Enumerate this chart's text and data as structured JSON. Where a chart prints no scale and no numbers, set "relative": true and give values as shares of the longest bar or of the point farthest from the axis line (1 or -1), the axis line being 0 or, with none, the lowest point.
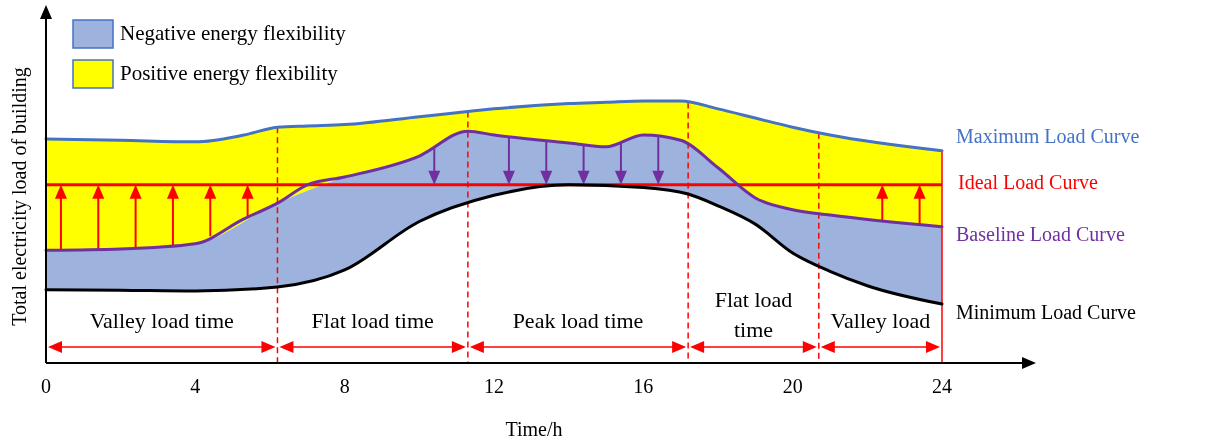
{
  "chart_data": {
    "type": "line",
    "relative": true,
    "xlabel": "Time/h",
    "ylabel": "Total electricity load of building",
    "xlim": [
      0,
      24
    ],
    "xticks": [
      0,
      4,
      8,
      12,
      16,
      20,
      24
    ],
    "legend": "top left",
    "grid": false,
    "series": [
      {
        "name": "Maximum Load Curve",
        "color": "#4472c4",
        "x": [
          0,
          2,
          4,
          5.3,
          6.2,
          7,
          8,
          10,
          11.3,
          12,
          14,
          15,
          16,
          17,
          18,
          19,
          20,
          21,
          24
        ],
        "values": [
          0.855,
          0.85,
          0.844,
          0.87,
          0.9,
          0.905,
          0.91,
          0.94,
          0.96,
          0.97,
          0.99,
          0.995,
          1.0,
          1.0,
          0.97,
          0.935,
          0.9,
          0.87,
          0.81
        ]
      },
      {
        "name": "Baseline Load Curve",
        "color": "#7030a0",
        "x": [
          0,
          2,
          4,
          5.3,
          6.2,
          7,
          8,
          10,
          11.3,
          12,
          14,
          15,
          16,
          17,
          18,
          19,
          20,
          21,
          24
        ],
        "values": [
          0.43,
          0.435,
          0.455,
          0.55,
          0.61,
          0.68,
          0.71,
          0.79,
          0.885,
          0.87,
          0.84,
          0.825,
          0.87,
          0.85,
          0.745,
          0.63,
          0.585,
          0.565,
          0.52
        ]
      },
      {
        "name": "Minimum Load Curve",
        "color": "#000000",
        "x": [
          0,
          2,
          4,
          6.2,
          8,
          10,
          12,
          14,
          16,
          17.2,
          18,
          19,
          20,
          21,
          22,
          24
        ],
        "values": [
          0.28,
          0.278,
          0.275,
          0.29,
          0.355,
          0.54,
          0.64,
          0.68,
          0.67,
          0.645,
          0.6,
          0.53,
          0.42,
          0.35,
          0.295,
          0.225
        ]
      },
      {
        "name": "Positive energy flexibility",
        "type": "area",
        "color": "#ffff00",
        "x": [
          0,
          2,
          4,
          5.3,
          6.2,
          7,
          8,
          10,
          11.3,
          12,
          14,
          15,
          16,
          17,
          18,
          19,
          20,
          21,
          24
        ],
        "values": [
          0.855,
          0.85,
          0.844,
          0.87,
          0.9,
          0.905,
          0.91,
          0.94,
          0.96,
          0.97,
          0.99,
          0.995,
          1.0,
          1.0,
          0.97,
          0.935,
          0.9,
          0.87,
          0.81
        ]
      },
      {
        "name": "Negative energy flexibility",
        "type": "area",
        "color": "#9db3dd",
        "x": [
          0,
          2,
          4,
          6.2,
          8,
          10,
          11.3,
          12,
          14,
          15,
          16,
          17,
          17.2,
          18,
          19,
          20,
          21,
          22,
          24
        ],
        "values": [
          0.43,
          0.435,
          0.455,
          0.61,
          0.71,
          0.79,
          0.885,
          0.87,
          0.84,
          0.825,
          0.87,
          0.85,
          0.84,
          0.745,
          0.63,
          0.585,
          0.565,
          0.55,
          0.52
        ]
      }
    ],
    "ref_lines": [
      {
        "axis": "y",
        "value": 0.68,
        "label": "Ideal Load Curve",
        "color": "#ff0000"
      },
      {
        "axis": "x",
        "value": 6.2,
        "color": "#ff0000",
        "line_style": "dashed"
      },
      {
        "axis": "x",
        "value": 11.3,
        "color": "#ff0000",
        "line_style": "dashed"
      },
      {
        "axis": "x",
        "value": 17.2,
        "color": "#ff0000",
        "line_style": "dashed"
      },
      {
        "axis": "x",
        "value": 20.7,
        "color": "#ff0000",
        "line_style": "dashed"
      },
      {
        "axis": "x",
        "value": 24,
        "color": "#ff0000",
        "line_style": "solid"
      }
    ],
    "annotations": [
      "Valley load time",
      "Flat load time",
      "Peak load time",
      "Flat load time",
      "Valley load"
    ]
  }
}
